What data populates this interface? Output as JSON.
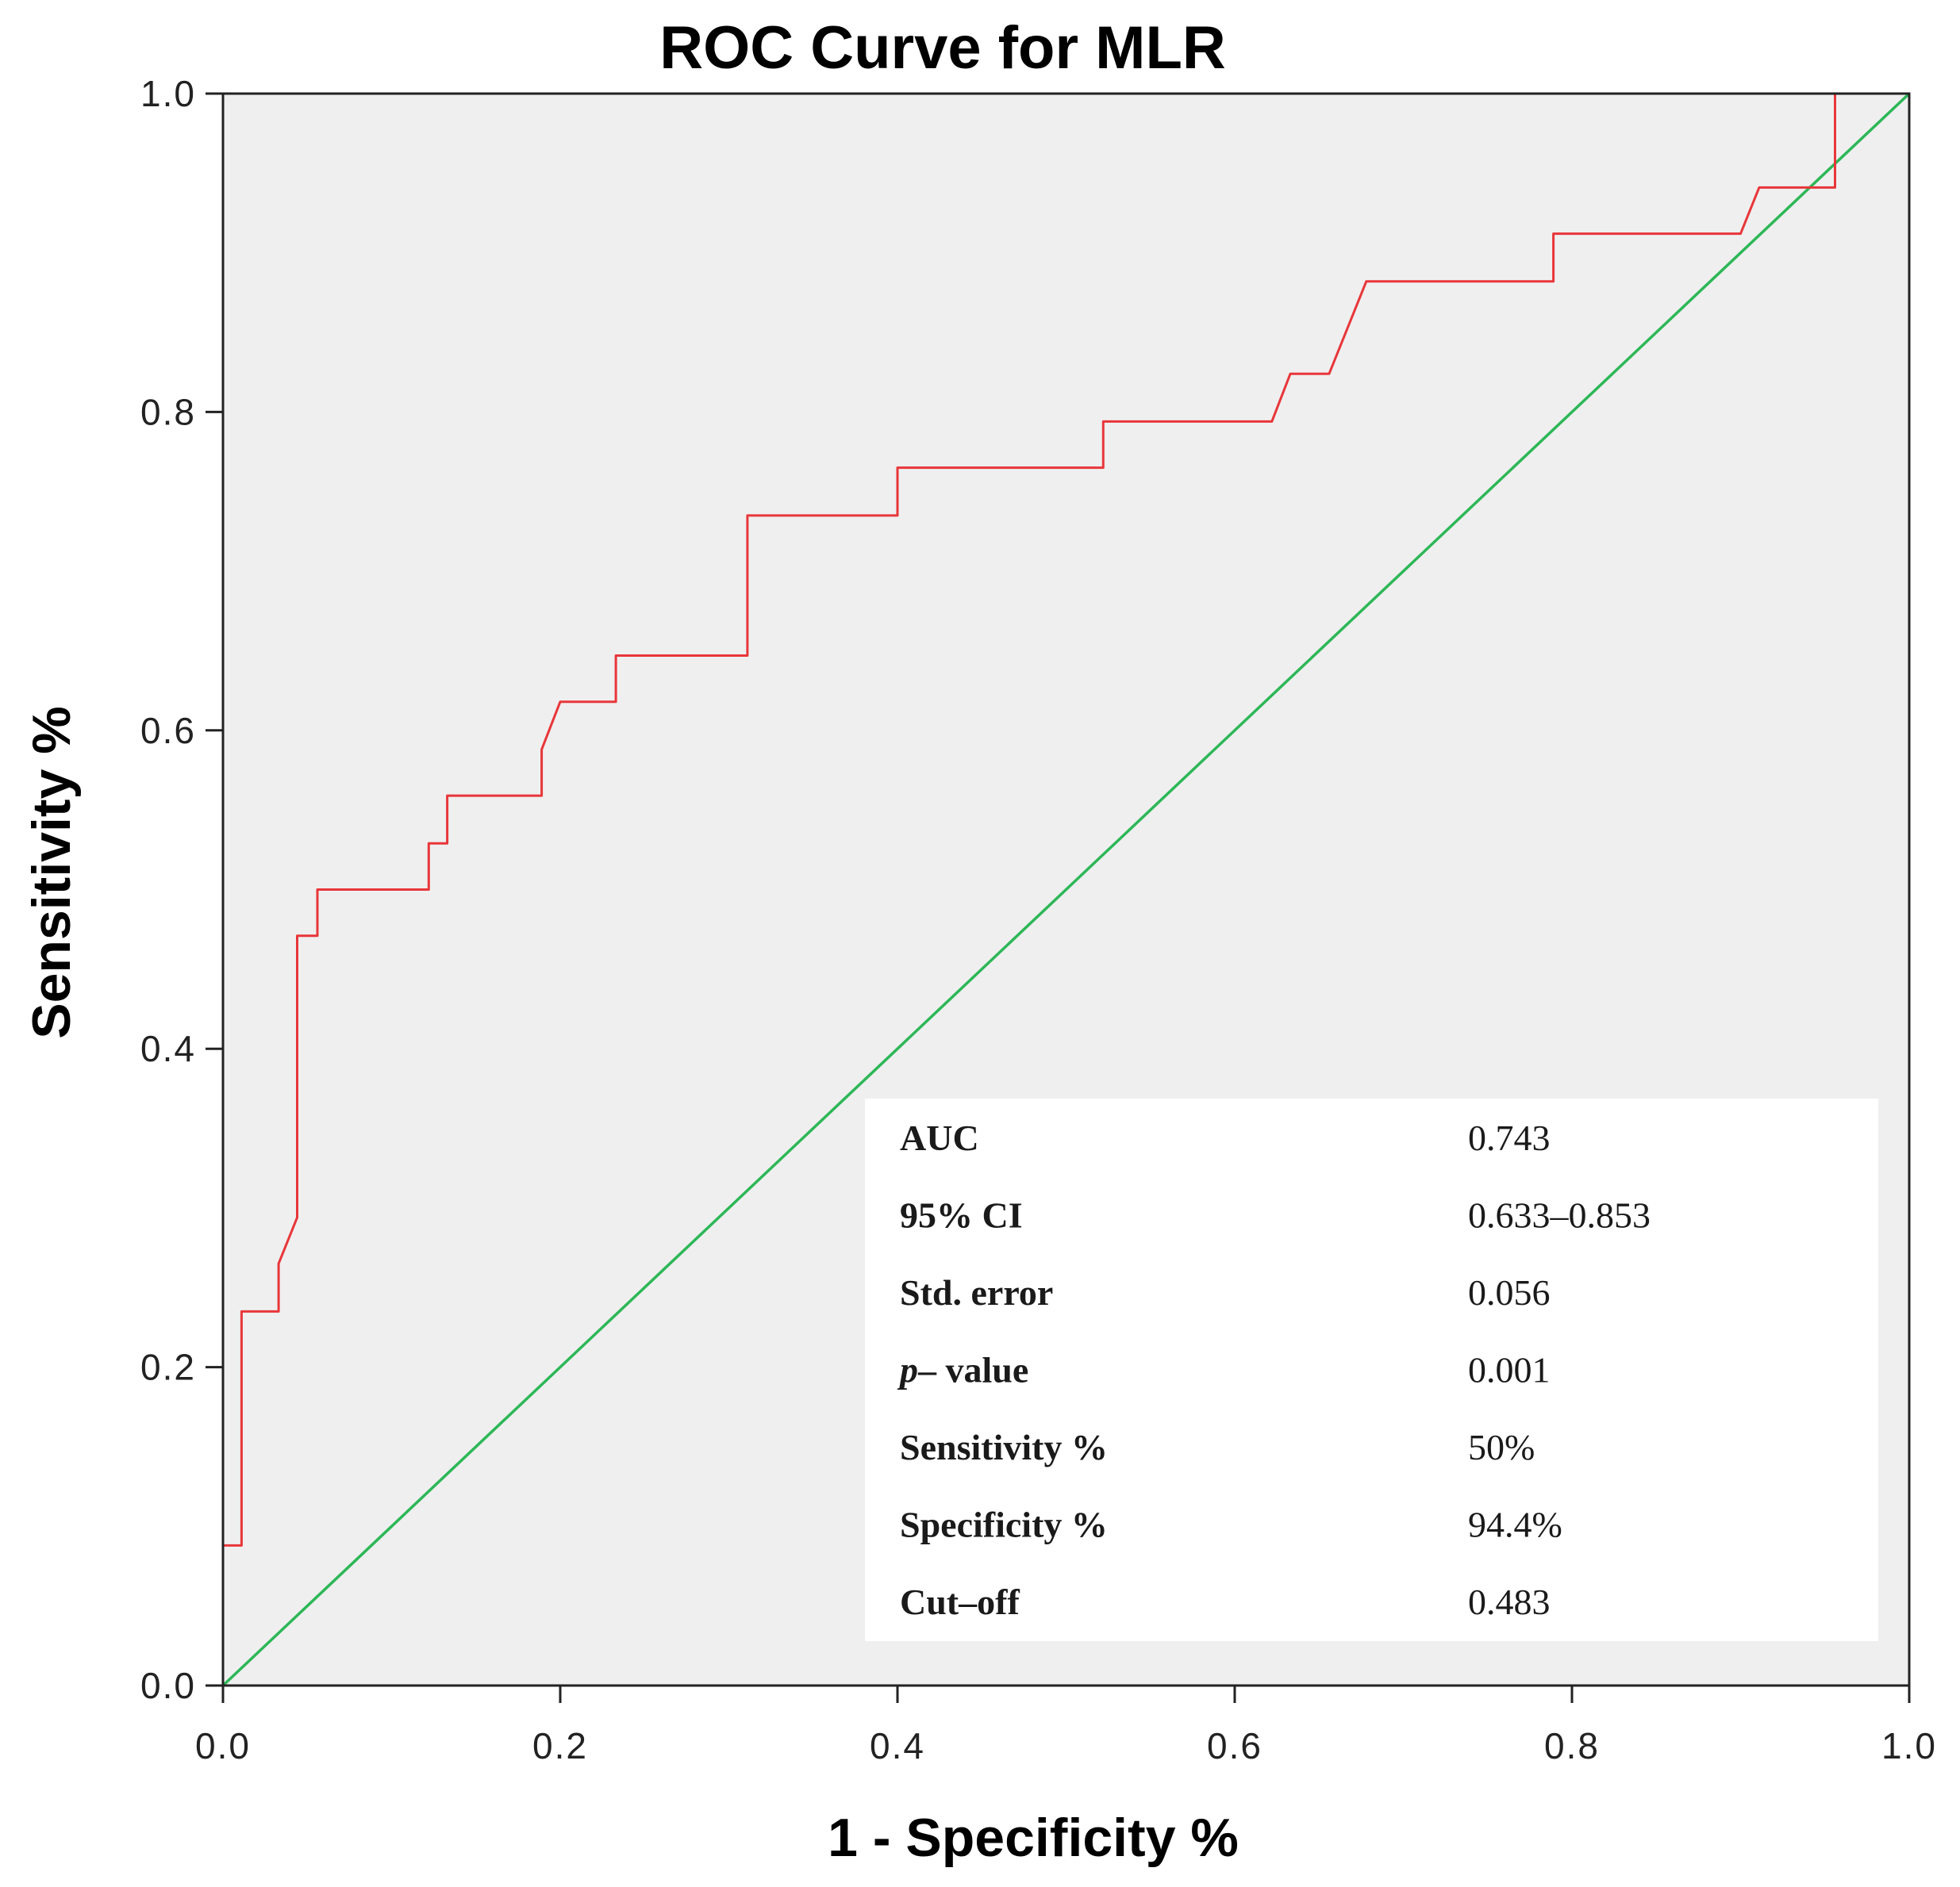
{
  "chart_data": {
    "type": "line",
    "title": "ROC Curve for MLR",
    "xlabel": "1 - Specificity %",
    "ylabel": "Sensitivity %",
    "xlim": [
      0,
      1
    ],
    "ylim": [
      0,
      1
    ],
    "xticks": [
      "0.0",
      "0.2",
      "0.4",
      "0.6",
      "0.8",
      "1.0"
    ],
    "yticks": [
      "0.0",
      "0.2",
      "0.4",
      "0.6",
      "0.8",
      "1.0"
    ],
    "grid": false,
    "background": "#efefef",
    "series": [
      {
        "color": "#e8363a",
        "x": [
          0.0,
          0.0,
          0.011,
          0.011,
          0.033,
          0.033,
          0.044,
          0.044,
          0.056,
          0.056,
          0.122,
          0.122,
          0.133,
          0.133,
          0.189,
          0.189,
          0.2,
          0.2,
          0.233,
          0.233,
          0.311,
          0.311,
          0.4,
          0.4,
          0.522,
          0.522,
          0.622,
          0.633,
          0.656,
          0.678,
          0.789,
          0.789,
          0.9,
          0.911,
          0.956,
          0.956,
          1.0
        ],
        "y": [
          0.0,
          0.088,
          0.088,
          0.235,
          0.235,
          0.265,
          0.294,
          0.471,
          0.471,
          0.5,
          0.5,
          0.529,
          0.529,
          0.559,
          0.559,
          0.588,
          0.618,
          0.618,
          0.618,
          0.647,
          0.647,
          0.735,
          0.735,
          0.765,
          0.765,
          0.794,
          0.794,
          0.824,
          0.824,
          0.882,
          0.882,
          0.912,
          0.912,
          0.941,
          0.941,
          1.0,
          1.0
        ]
      },
      {
        "color": "#2db757",
        "x": [
          0.0,
          1.0
        ],
        "y": [
          0.0,
          1.0
        ]
      }
    ],
    "annotations": {
      "stats_table": [
        {
          "label": "AUC",
          "value": "0.743"
        },
        {
          "label": "95% CI",
          "value": "0.633–0.853"
        },
        {
          "label": "Std. error",
          "value": "0.056"
        },
        {
          "label": "p– value",
          "value": "0.001"
        },
        {
          "label": "Sensitivity %",
          "value": "50%"
        },
        {
          "label": "Specificity %",
          "value": "94.4%"
        },
        {
          "label": "Cut–off",
          "value": "0.483"
        }
      ]
    }
  }
}
